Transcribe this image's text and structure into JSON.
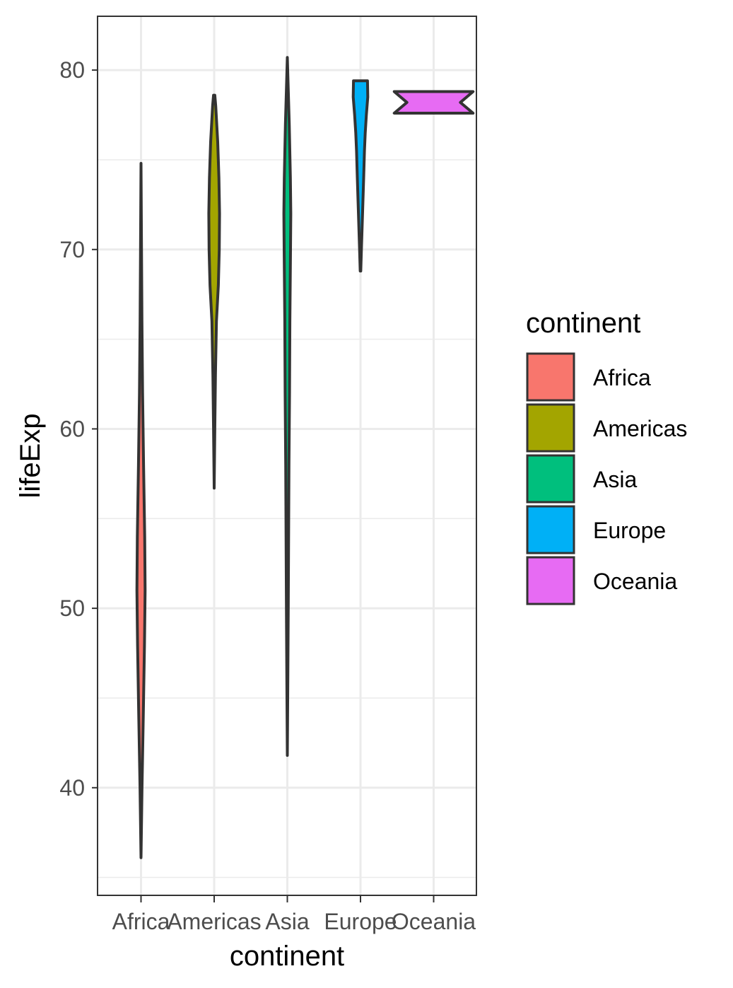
{
  "chart_data": {
    "type": "violin",
    "xlabel": "continent",
    "ylabel": "lifeExp",
    "ylim": [
      34,
      83
    ],
    "yticks": [
      40,
      50,
      60,
      70,
      80
    ],
    "yticks_labels": [
      "40",
      "50",
      "60",
      "70",
      "80"
    ],
    "y_minor_ticks": [
      35,
      45,
      55,
      65,
      75
    ],
    "grid": true,
    "legend_position": "right",
    "legend_title": "continent",
    "categories": [
      "Africa",
      "Americas",
      "Asia",
      "Europe",
      "Oceania"
    ],
    "series": [
      {
        "name": "Africa",
        "color": "#F8766D",
        "min": 36.1,
        "max": 74.8,
        "profile": [
          [
            36.1,
            0.0
          ],
          [
            40.0,
            0.08
          ],
          [
            44.0,
            0.18
          ],
          [
            48.0,
            0.27
          ],
          [
            51.0,
            0.32
          ],
          [
            54.0,
            0.29
          ],
          [
            58.0,
            0.2
          ],
          [
            62.0,
            0.12
          ],
          [
            66.0,
            0.07
          ],
          [
            70.0,
            0.04
          ],
          [
            74.8,
            0.0
          ]
        ]
      },
      {
        "name": "Americas",
        "color": "#A3A500",
        "min": 56.7,
        "max": 78.6,
        "profile": [
          [
            56.7,
            0.0
          ],
          [
            60.0,
            0.05
          ],
          [
            63.0,
            0.1
          ],
          [
            66.0,
            0.18
          ],
          [
            68.0,
            0.33
          ],
          [
            70.0,
            0.4
          ],
          [
            72.0,
            0.42
          ],
          [
            74.0,
            0.37
          ],
          [
            76.0,
            0.28
          ],
          [
            78.0,
            0.12
          ],
          [
            78.6,
            0.05
          ]
        ]
      },
      {
        "name": "Asia",
        "color": "#00BF7D",
        "min": 41.8,
        "max": 80.7,
        "profile": [
          [
            41.8,
            0.0
          ],
          [
            46.0,
            0.04
          ],
          [
            50.0,
            0.07
          ],
          [
            54.0,
            0.1
          ],
          [
            58.0,
            0.13
          ],
          [
            62.0,
            0.17
          ],
          [
            66.0,
            0.2
          ],
          [
            70.0,
            0.25
          ],
          [
            72.0,
            0.27
          ],
          [
            74.0,
            0.24
          ],
          [
            77.0,
            0.15
          ],
          [
            80.7,
            0.0
          ]
        ]
      },
      {
        "name": "Europe",
        "color": "#00B0F6",
        "min": 68.8,
        "max": 79.4,
        "profile": [
          [
            68.8,
            0.02
          ],
          [
            70.0,
            0.07
          ],
          [
            72.0,
            0.16
          ],
          [
            74.0,
            0.25
          ],
          [
            75.5,
            0.31
          ],
          [
            76.5,
            0.37
          ],
          [
            77.5,
            0.46
          ],
          [
            78.5,
            0.57
          ],
          [
            79.4,
            0.55
          ]
        ]
      },
      {
        "name": "Oceania",
        "color": "#E76BF3",
        "min": 77.6,
        "max": 78.8,
        "profile": [
          [
            77.6,
            3.1
          ],
          [
            78.2,
            2.1
          ],
          [
            78.8,
            3.1
          ]
        ]
      }
    ]
  }
}
